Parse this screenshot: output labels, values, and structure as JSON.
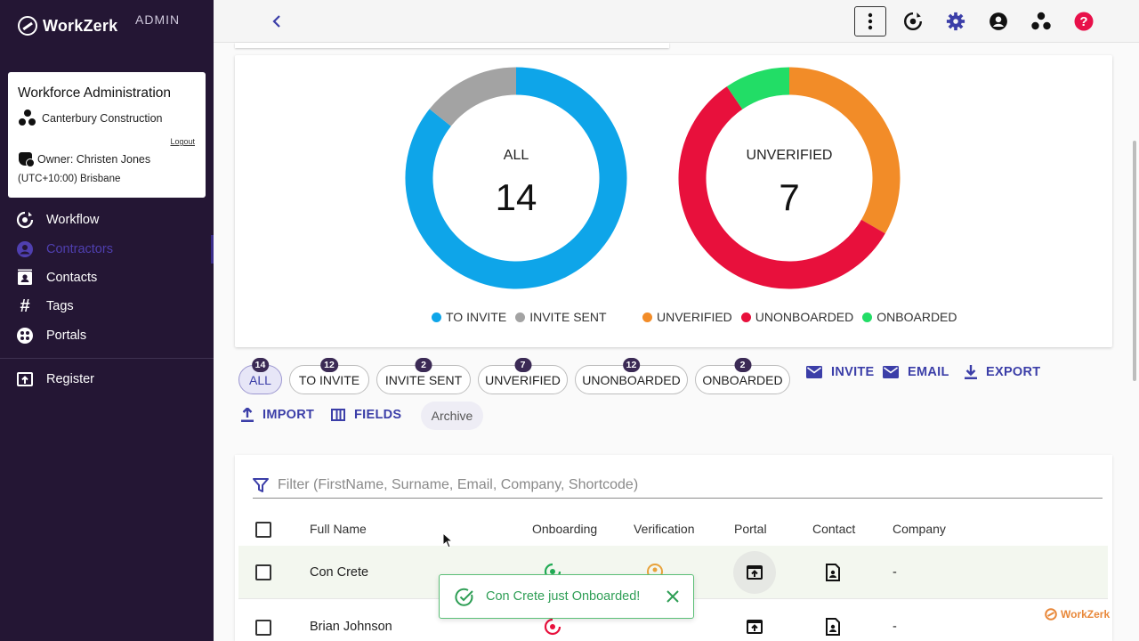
{
  "sidebar": {
    "brand": "WorkZerk",
    "admin_label": "ADMIN",
    "org": {
      "title": "Workforce Administration",
      "company": "Canterbury Construction",
      "logout": "Logout",
      "owner": "Owner: Christen Jones",
      "timezone": "(UTC+10:00) Brisbane"
    },
    "nav": [
      {
        "label": "Workflow",
        "icon": "workflow-icon"
      },
      {
        "label": "Contractors",
        "icon": "person-icon",
        "active": true
      },
      {
        "label": "Contacts",
        "icon": "contacts-icon"
      },
      {
        "label": "Tags",
        "icon": "hash-icon"
      },
      {
        "label": "Portals",
        "icon": "portals-icon"
      },
      {
        "label": "Register",
        "icon": "register-icon"
      }
    ]
  },
  "topbar": {
    "icons": [
      "more-vertical-icon",
      "workflow-icon",
      "gear-icon",
      "account-icon",
      "group-icon",
      "help-icon"
    ]
  },
  "colors": {
    "sidebar_bg": "#241634",
    "accent": "#3b3ea8",
    "to_invite": "#0ea5e9",
    "invite_sent": "#a3a3a3",
    "unverified": "#f28c28",
    "unonboarded": "#e8103c",
    "onboarded": "#22dd66"
  },
  "chart_data": [
    {
      "type": "pie",
      "center_label": "ALL",
      "center_value": "14",
      "categories": [
        "TO INVITE",
        "INVITE SENT"
      ],
      "values": [
        12,
        2
      ],
      "colors": [
        "#0ea5e9",
        "#a3a3a3"
      ]
    },
    {
      "type": "pie",
      "center_label": "UNVERIFIED",
      "center_value": "7",
      "categories": [
        "UNVERIFIED",
        "UNONBOARDED",
        "ONBOARDED"
      ],
      "values": [
        7,
        12,
        2
      ],
      "colors": [
        "#f28c28",
        "#e8103c",
        "#22dd66"
      ]
    }
  ],
  "chips": [
    {
      "label": "ALL",
      "count": "14",
      "selected": true
    },
    {
      "label": "TO INVITE",
      "count": "12"
    },
    {
      "label": "INVITE SENT",
      "count": "2"
    },
    {
      "label": "UNVERIFIED",
      "count": "7"
    },
    {
      "label": "UNONBOARDED",
      "count": "12"
    },
    {
      "label": "ONBOARDED",
      "count": "2"
    }
  ],
  "actions": {
    "invite": "INVITE",
    "email": "EMAIL",
    "export": "EXPORT",
    "import": "IMPORT",
    "fields": "FIELDS",
    "archive": "Archive"
  },
  "table": {
    "filter_placeholder": "Filter (FirstName, Surname, Email, Company, Shortcode)",
    "columns": [
      "Full Name",
      "Onboarding",
      "Verification",
      "Portal",
      "Contact",
      "Company"
    ],
    "rows": [
      {
        "name": "Con Crete",
        "company": "-"
      },
      {
        "name": "Brian Johnson",
        "company": "-"
      }
    ]
  },
  "toast": {
    "message": "Con Crete just Onboarded!"
  },
  "watermark": "WorkZerk"
}
